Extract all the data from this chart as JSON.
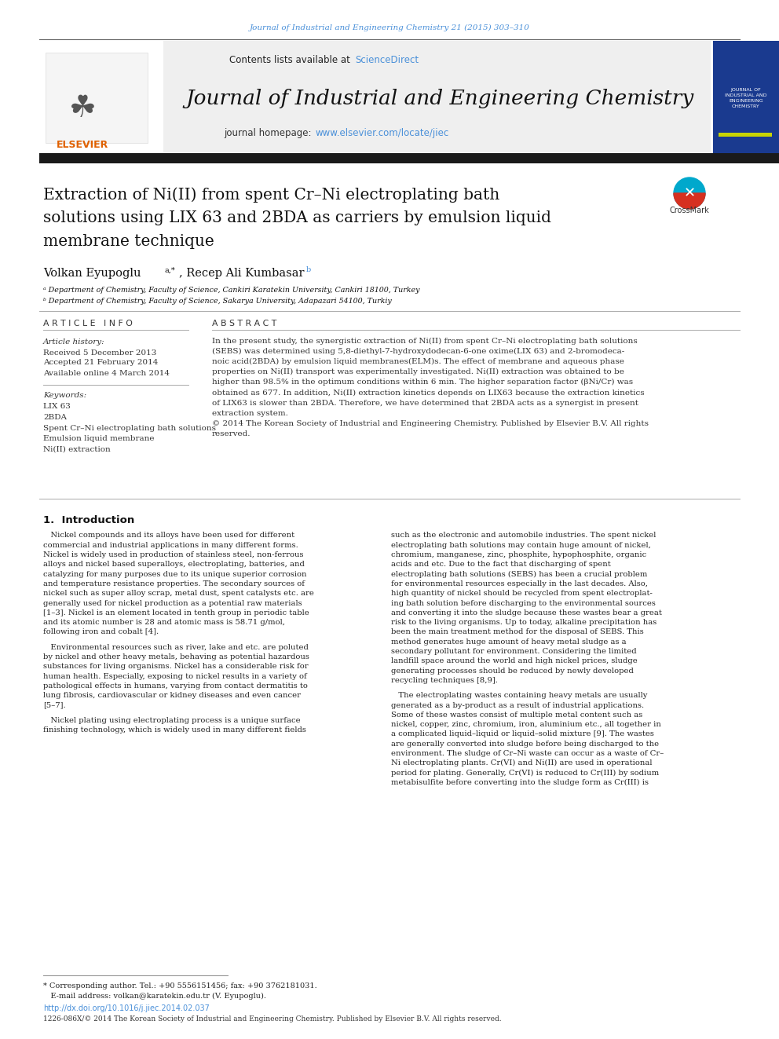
{
  "page_bg": "#ffffff",
  "top_journal_ref": "Journal of Industrial and Engineering Chemistry 21 (2015) 303–310",
  "top_journal_ref_color": "#4a90d9",
  "header_bg": "#f0f0f0",
  "header_contents": "Contents lists available at ",
  "header_sciencedirect": "ScienceDirect",
  "header_sciencedirect_color": "#4a90d9",
  "journal_title": "Journal of Industrial and Engineering Chemistry",
  "journal_homepage_label": "journal homepage: ",
  "journal_homepage_url": "www.elsevier.com/locate/jiec",
  "journal_homepage_color": "#4a90d9",
  "thick_bar_color": "#1a1a1a",
  "article_title_line1": "Extraction of Ni(II) from spent Cr–Ni electroplating bath",
  "article_title_line2": "solutions using LIX 63 and 2BDA as carriers by emulsion liquid",
  "article_title_line3": "membrane technique",
  "authors": "Volkan Eyupoglu",
  "authors_super_a": "a,*",
  "authors2": ", Recep Ali Kumbasar",
  "authors_super_b": "b",
  "affil_a": "ᵃ Department of Chemistry, Faculty of Science, Cankiri Karatekin University, Cankiri 18100, Turkey",
  "affil_b": "ᵇ Department of Chemistry, Faculty of Science, Sakarya University, Adapazari 54100, Turkiy",
  "article_info_title": "A R T I C L E   I N F O",
  "article_history_label": "Article history:",
  "received": "Received 5 December 2013",
  "accepted": "Accepted 21 February 2014",
  "available": "Available online 4 March 2014",
  "keywords_label": "Keywords:",
  "keywords": [
    "LIX 63",
    "2BDA",
    "Spent Cr–Ni electroplating bath solutions",
    "Emulsion liquid membrane",
    "Ni(II) extraction"
  ],
  "abstract_title": "A B S T R A C T",
  "abstract_lines": [
    "In the present study, the synergistic extraction of Ni(II) from spent Cr–Ni electroplating bath solutions",
    "(SEBS) was determined using 5,8-diethyl-7-hydroxydodecan-6-one oxime(LIX 63) and 2-bromodeca-",
    "noic acid(2BDA) by emulsion liquid membranes(ELM)s. The effect of membrane and aqueous phase",
    "properties on Ni(II) transport was experimentally investigated. Ni(II) extraction was obtained to be",
    "higher than 98.5% in the optimum conditions within 6 min. The higher separation factor (βNi/Cr) was",
    "obtained as 677. In addition, Ni(II) extraction kinetics depends on LIX63 because the extraction kinetics",
    "of LIX63 is slower than 2BDA. Therefore, we have determined that 2BDA acts as a synergist in present",
    "extraction system.",
    "© 2014 The Korean Society of Industrial and Engineering Chemistry. Published by Elsevier B.V. All rights",
    "reserved."
  ],
  "intro_title": "1.  Introduction",
  "intro_col1_lines": [
    "   Nickel compounds and its alloys have been used for different",
    "commercial and industrial applications in many different forms.",
    "Nickel is widely used in production of stainless steel, non-ferrous",
    "alloys and nickel based superalloys, electroplating, batteries, and",
    "catalyzing for many purposes due to its unique superior corrosion",
    "and temperature resistance properties. The secondary sources of",
    "nickel such as super alloy scrap, metal dust, spent catalysts etc. are",
    "generally used for nickel production as a potential raw materials",
    "[1–3]. Nickel is an element located in tenth group in periodic table",
    "and its atomic number is 28 and atomic mass is 58.71 g/mol,",
    "following iron and cobalt [4].",
    "",
    "   Environmental resources such as river, lake and etc. are poluted",
    "by nickel and other heavy metals, behaving as potential hazardous",
    "substances for living organisms. Nickel has a considerable risk for",
    "human health. Especially, exposing to nickel results in a variety of",
    "pathological effects in humans, varying from contact dermatitis to",
    "lung fibrosis, cardiovascular or kidney diseases and even cancer",
    "[5–7].",
    "",
    "   Nickel plating using electroplating process is a unique surface",
    "finishing technology, which is widely used in many different fields"
  ],
  "intro_col2_lines": [
    "such as the electronic and automobile industries. The spent nickel",
    "electroplating bath solutions may contain huge amount of nickel,",
    "chromium, manganese, zinc, phosphite, hypophosphite, organic",
    "acids and etc. Due to the fact that discharging of spent",
    "electroplating bath solutions (SEBS) has been a crucial problem",
    "for environmental resources especially in the last decades. Also,",
    "high quantity of nickel should be recycled from spent electroplat-",
    "ing bath solution before discharging to the environmental sources",
    "and converting it into the sludge because these wastes bear a great",
    "risk to the living organisms. Up to today, alkaline precipitation has",
    "been the main treatment method for the disposal of SEBS. This",
    "method generates huge amount of heavy metal sludge as a",
    "secondary pollutant for environment. Considering the limited",
    "landfill space around the world and high nickel prices, sludge",
    "generating processes should be reduced by newly developed",
    "recycling techniques [8,9].",
    "",
    "   The electroplating wastes containing heavy metals are usually",
    "generated as a by-product as a result of industrial applications.",
    "Some of these wastes consist of multiple metal content such as",
    "nickel, copper, zinc, chromium, iron, aluminium etc., all together in",
    "a complicated liquid–liquid or liquid–solid mixture [9]. The wastes",
    "are generally converted into sludge before being discharged to the",
    "environment. The sludge of Cr–Ni waste can occur as a waste of Cr–",
    "Ni electroplating plants. Cr(VI) and Ni(II) are used in operational",
    "period for plating. Generally, Cr(VI) is reduced to Cr(III) by sodium",
    "metabisulfite before converting into the sludge form as Cr(III) is"
  ],
  "footnote_star": "* Corresponding author. Tel.: +90 5556151456; fax: +90 3762181031.",
  "footnote_email": "   E-mail address: volkan@karatekin.edu.tr (V. Eyupoglu).",
  "doi_text": "http://dx.doi.org/10.1016/j.jiec.2014.02.037",
  "doi_color": "#4a90d9",
  "copyright_text": "1226-086X/© 2014 The Korean Society of Industrial and Engineering Chemistry. Published by Elsevier B.V. All rights reserved.",
  "elsevier_color": "#e06000",
  "blue_cover_color": "#1a3a8f",
  "yellow_stripe_color": "#c8d400"
}
